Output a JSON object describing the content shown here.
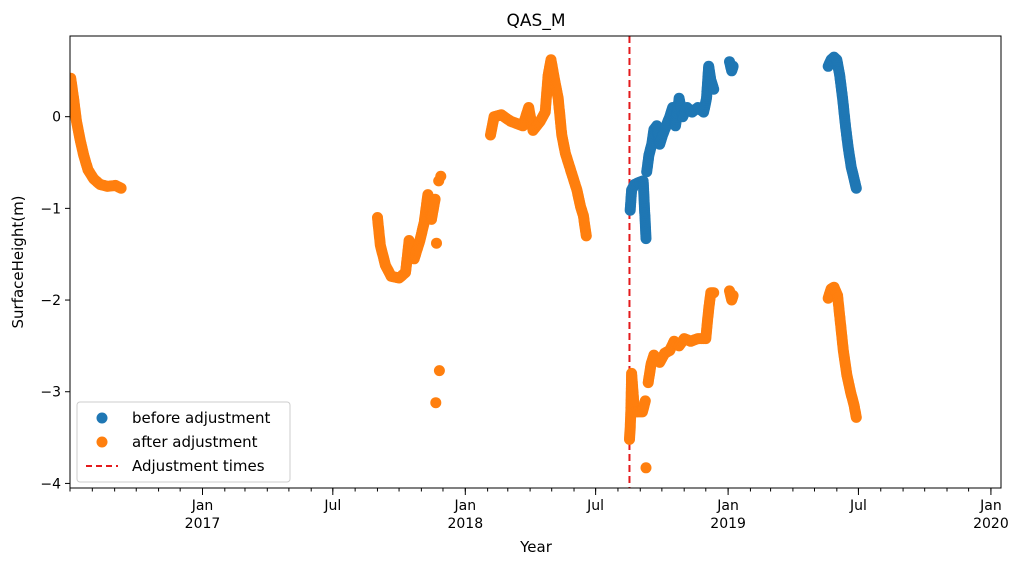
{
  "chart_data": {
    "type": "scatter",
    "title": "QAS_M",
    "xlabel": "Year",
    "ylabel": "SurfaceHeight(m)",
    "xlim": [
      "2016-07-01",
      "2020-01-15"
    ],
    "ylim": [
      -4.05,
      0.88
    ],
    "yticks": [
      0,
      -1,
      -2,
      -3,
      -4
    ],
    "xticks": [
      {
        "date": "2017-01-01",
        "label": "Jan",
        "sub": "2017"
      },
      {
        "date": "2017-07-01",
        "label": "Jul",
        "sub": ""
      },
      {
        "date": "2018-01-01",
        "label": "Jan",
        "sub": "2018"
      },
      {
        "date": "2018-07-01",
        "label": "Jul",
        "sub": ""
      },
      {
        "date": "2019-01-01",
        "label": "Jan",
        "sub": "2019"
      },
      {
        "date": "2019-07-01",
        "label": "Jul",
        "sub": ""
      },
      {
        "date": "2020-01-01",
        "label": "Jan",
        "sub": "2020"
      }
    ],
    "series": [
      {
        "name": "before adjustment",
        "color": "#1f77b4",
        "points": [
          [
            "2018-08-18",
            -1.02
          ],
          [
            "2018-08-20",
            -0.8
          ],
          [
            "2018-08-24",
            -0.74
          ],
          [
            "2018-08-29",
            -0.72
          ],
          [
            "2018-09-05",
            -0.7
          ],
          [
            "2018-09-09",
            -1.33
          ],
          [
            "2018-09-10",
            -0.6
          ],
          [
            "2018-09-13",
            -0.42
          ],
          [
            "2018-09-17",
            -0.3
          ],
          [
            "2018-09-20",
            -0.14
          ],
          [
            "2018-09-24",
            -0.1
          ],
          [
            "2018-09-28",
            -0.3
          ],
          [
            "2018-10-02",
            -0.2
          ],
          [
            "2018-10-07",
            -0.1
          ],
          [
            "2018-10-12",
            0.0
          ],
          [
            "2018-10-16",
            0.1
          ],
          [
            "2018-10-20",
            -0.1
          ],
          [
            "2018-10-25",
            0.2
          ],
          [
            "2018-10-30",
            0.0
          ],
          [
            "2018-11-05",
            0.1
          ],
          [
            "2018-11-12",
            0.05
          ],
          [
            "2018-11-20",
            0.1
          ],
          [
            "2018-11-28",
            0.05
          ],
          [
            "2018-12-02",
            0.2
          ],
          [
            "2018-12-05",
            0.55
          ],
          [
            "2018-12-08",
            0.4
          ],
          [
            "2018-12-12",
            0.3
          ],
          [
            "2019-01-03",
            0.6
          ],
          [
            "2019-01-06",
            0.5
          ],
          [
            "2019-01-08",
            0.55
          ],
          [
            "2019-05-20",
            0.55
          ],
          [
            "2019-05-24",
            0.62
          ],
          [
            "2019-05-28",
            0.65
          ],
          [
            "2019-06-01",
            0.62
          ],
          [
            "2019-06-05",
            0.45
          ],
          [
            "2019-06-09",
            0.2
          ],
          [
            "2019-06-13",
            -0.1
          ],
          [
            "2019-06-17",
            -0.35
          ],
          [
            "2019-06-21",
            -0.55
          ],
          [
            "2019-06-25",
            -0.68
          ],
          [
            "2019-06-28",
            -0.78
          ]
        ]
      },
      {
        "name": "after adjustment",
        "color": "#ff7f0e",
        "points": [
          [
            "2016-07-02",
            0.42
          ],
          [
            "2016-07-06",
            0.2
          ],
          [
            "2016-07-10",
            -0.05
          ],
          [
            "2016-07-15",
            -0.25
          ],
          [
            "2016-07-20",
            -0.42
          ],
          [
            "2016-07-26",
            -0.58
          ],
          [
            "2016-08-03",
            -0.68
          ],
          [
            "2016-08-12",
            -0.74
          ],
          [
            "2016-08-22",
            -0.76
          ],
          [
            "2016-09-02",
            -0.75
          ],
          [
            "2016-09-10",
            -0.78
          ],
          [
            "2017-09-01",
            -1.1
          ],
          [
            "2017-09-05",
            -1.4
          ],
          [
            "2017-09-12",
            -1.62
          ],
          [
            "2017-09-20",
            -1.74
          ],
          [
            "2017-10-01",
            -1.76
          ],
          [
            "2017-10-10",
            -1.7
          ],
          [
            "2017-10-15",
            -1.35
          ],
          [
            "2017-10-22",
            -1.55
          ],
          [
            "2017-10-30",
            -1.35
          ],
          [
            "2017-11-05",
            -1.15
          ],
          [
            "2017-11-10",
            -0.85
          ],
          [
            "2017-11-15",
            -1.12
          ],
          [
            "2017-11-20",
            -0.9
          ],
          [
            "2017-11-25",
            -0.7
          ],
          [
            "2017-11-28",
            -0.65
          ],
          [
            "2017-11-21",
            -3.12
          ],
          [
            "2017-11-26",
            -2.77
          ],
          [
            "2017-11-22",
            -1.38
          ],
          [
            "2018-02-05",
            -0.2
          ],
          [
            "2018-02-10",
            0.0
          ],
          [
            "2018-02-20",
            0.02
          ],
          [
            "2018-03-05",
            -0.05
          ],
          [
            "2018-03-15",
            -0.08
          ],
          [
            "2018-03-22",
            -0.1
          ],
          [
            "2018-03-30",
            0.1
          ],
          [
            "2018-04-05",
            -0.15
          ],
          [
            "2018-04-15",
            -0.05
          ],
          [
            "2018-04-22",
            0.05
          ],
          [
            "2018-04-26",
            0.45
          ],
          [
            "2018-04-30",
            0.62
          ],
          [
            "2018-05-05",
            0.4
          ],
          [
            "2018-05-10",
            0.2
          ],
          [
            "2018-05-15",
            -0.2
          ],
          [
            "2018-05-20",
            -0.4
          ],
          [
            "2018-05-28",
            -0.6
          ],
          [
            "2018-06-05",
            -0.8
          ],
          [
            "2018-06-10",
            -0.98
          ],
          [
            "2018-06-14",
            -1.08
          ],
          [
            "2018-06-18",
            -1.3
          ],
          [
            "2018-08-17",
            -3.52
          ],
          [
            "2018-08-18",
            -3.4
          ],
          [
            "2018-08-19",
            -3.2
          ],
          [
            "2018-08-20",
            -2.8
          ],
          [
            "2018-08-24",
            -3.22
          ],
          [
            "2018-08-29",
            -3.22
          ],
          [
            "2018-09-04",
            -3.22
          ],
          [
            "2018-09-08",
            -3.1
          ],
          [
            "2018-09-09",
            -3.83
          ],
          [
            "2018-09-12",
            -2.9
          ],
          [
            "2018-09-16",
            -2.7
          ],
          [
            "2018-09-20",
            -2.6
          ],
          [
            "2018-09-28",
            -2.68
          ],
          [
            "2018-10-05",
            -2.58
          ],
          [
            "2018-10-12",
            -2.55
          ],
          [
            "2018-10-18",
            -2.45
          ],
          [
            "2018-10-25",
            -2.5
          ],
          [
            "2018-11-01",
            -2.42
          ],
          [
            "2018-11-10",
            -2.45
          ],
          [
            "2018-11-20",
            -2.42
          ],
          [
            "2018-12-01",
            -2.42
          ],
          [
            "2018-12-05",
            -2.1
          ],
          [
            "2018-12-08",
            -1.92
          ],
          [
            "2018-12-12",
            -1.92
          ],
          [
            "2019-01-03",
            -1.9
          ],
          [
            "2019-01-06",
            -2.0
          ],
          [
            "2019-01-08",
            -1.95
          ],
          [
            "2019-05-20",
            -1.98
          ],
          [
            "2019-05-24",
            -1.88
          ],
          [
            "2019-05-28",
            -1.86
          ],
          [
            "2019-06-02",
            -1.95
          ],
          [
            "2019-06-06",
            -2.25
          ],
          [
            "2019-06-10",
            -2.55
          ],
          [
            "2019-06-15",
            -2.82
          ],
          [
            "2019-06-20",
            -3.0
          ],
          [
            "2019-06-25",
            -3.15
          ],
          [
            "2019-06-28",
            -3.28
          ]
        ]
      }
    ],
    "adjustment_times": {
      "name": "Adjustment times",
      "color": "#e41a1c",
      "dates": [
        "2018-08-17"
      ]
    },
    "legend": {
      "placement": "lower-left",
      "entries": [
        "before adjustment",
        "after adjustment",
        "Adjustment times"
      ]
    }
  }
}
